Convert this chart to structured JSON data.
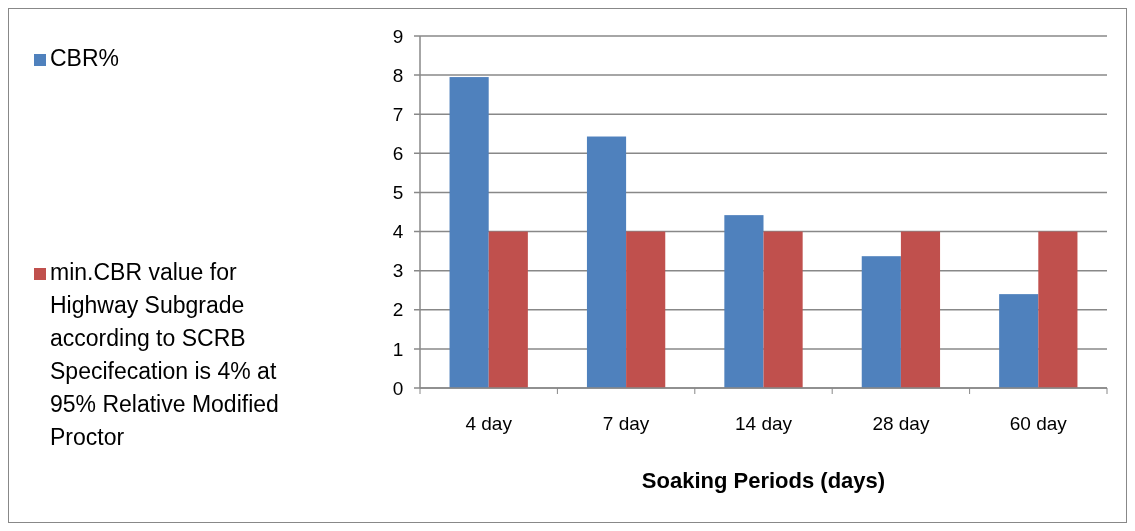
{
  "chart_data": {
    "type": "bar",
    "xlabel": "Soaking Periods (days)",
    "categories": [
      "4 day",
      "7 day",
      "14 day",
      "28 day",
      "60 day"
    ],
    "series": [
      {
        "name": "CBR%",
        "color": "#4f81bd",
        "values": [
          7.95,
          6.43,
          4.42,
          3.37,
          2.4
        ]
      },
      {
        "name": "min.CBR value for Highway Subgrade according to SCRB Specifecation is 4% at 95% Relative Modified Proctor",
        "color": "#c0504d",
        "values": [
          4,
          4,
          4,
          4,
          4
        ]
      }
    ],
    "ylim": [
      0,
      9
    ],
    "yticks": [
      0,
      1,
      2,
      3,
      4,
      5,
      6,
      7,
      8,
      9
    ],
    "grid": "y",
    "legend": "left"
  }
}
